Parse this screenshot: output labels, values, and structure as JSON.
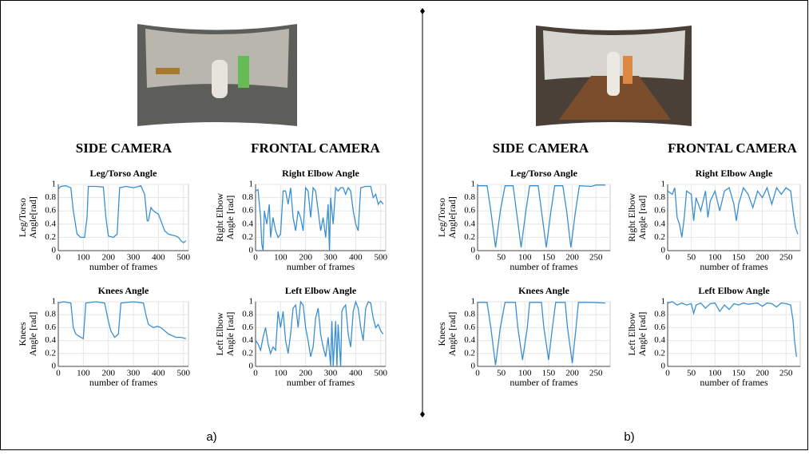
{
  "panels": [
    {
      "label": "a)",
      "headings": [
        "SIDE CAMERA",
        "FRONTAL CAMERA"
      ]
    },
    {
      "label": "b)",
      "headings": [
        "SIDE CAMERA",
        "FRONTAL CAMERA"
      ]
    }
  ],
  "chart_data": [
    {
      "type": "line",
      "title": "Leg/Torso Angle",
      "ylabel": [
        "Leg/Torso",
        "Angle[rad]"
      ],
      "xlabel": "number of frames",
      "color": "#3a8fd0",
      "grid": true,
      "xlim": [
        0,
        520
      ],
      "xticks": [
        0,
        100,
        200,
        300,
        400,
        500
      ],
      "ylim": [
        0,
        1
      ],
      "yticks": [
        0,
        0.2,
        0.4,
        0.6,
        0.8,
        1
      ],
      "x": [
        0,
        10,
        30,
        50,
        60,
        75,
        90,
        105,
        115,
        120,
        150,
        180,
        190,
        200,
        220,
        235,
        245,
        270,
        300,
        330,
        345,
        355,
        360,
        370,
        380,
        400,
        415,
        425,
        440,
        470,
        480,
        490,
        500,
        510
      ],
      "values": [
        0.93,
        0.97,
        0.98,
        0.95,
        0.6,
        0.25,
        0.2,
        0.2,
        0.5,
        0.97,
        0.97,
        0.96,
        0.5,
        0.22,
        0.2,
        0.25,
        0.95,
        0.97,
        0.95,
        0.98,
        0.85,
        0.45,
        0.45,
        0.65,
        0.6,
        0.55,
        0.4,
        0.3,
        0.25,
        0.22,
        0.2,
        0.15,
        0.12,
        0.15
      ]
    },
    {
      "type": "line",
      "title": "Right Elbow Angle",
      "ylabel": [
        "Right Elbow",
        "Angle [rad]"
      ],
      "xlabel": "number of frames",
      "color": "#3a8fd0",
      "grid": true,
      "xlim": [
        0,
        520
      ],
      "xticks": [
        0,
        100,
        200,
        300,
        400,
        500
      ],
      "ylim": [
        0,
        1
      ],
      "yticks": [
        0,
        0.2,
        0.4,
        0.6,
        0.8,
        1
      ],
      "x": [
        0,
        10,
        20,
        25,
        30,
        35,
        45,
        55,
        60,
        70,
        80,
        90,
        100,
        110,
        120,
        130,
        140,
        150,
        160,
        170,
        180,
        190,
        200,
        210,
        220,
        230,
        240,
        250,
        260,
        270,
        280,
        290,
        295,
        300,
        310,
        320,
        330,
        340,
        350,
        360,
        370,
        380,
        390,
        400,
        410,
        420,
        440,
        460,
        470,
        480,
        490,
        500,
        510
      ],
      "values": [
        0.9,
        0.92,
        0.5,
        0.1,
        0,
        0.6,
        0.4,
        0.7,
        0.2,
        0.5,
        0.3,
        0.2,
        0.25,
        0.9,
        0.9,
        0.7,
        0.95,
        0.5,
        0.3,
        0.6,
        0.5,
        0.3,
        0.95,
        0.9,
        0.5,
        0.95,
        0.9,
        0.6,
        0.3,
        0.5,
        0.2,
        0.7,
        0,
        0.8,
        0.4,
        0.95,
        0.9,
        0.95,
        0.95,
        0.85,
        0.95,
        0.9,
        0.6,
        0.4,
        0.3,
        0.95,
        0.97,
        0.97,
        0.8,
        0.85,
        0.7,
        0.75,
        0.7
      ]
    },
    {
      "type": "line",
      "title": "Knees Angle",
      "ylabel": [
        "Knees",
        "Angle [rad]"
      ],
      "xlabel": "number of frames",
      "color": "#3a8fd0",
      "grid": true,
      "xlim": [
        0,
        520
      ],
      "xticks": [
        0,
        100,
        200,
        300,
        400,
        500
      ],
      "ylim": [
        0,
        1
      ],
      "yticks": [
        0,
        0.2,
        0.4,
        0.6,
        0.8,
        1
      ],
      "x": [
        0,
        20,
        50,
        60,
        70,
        90,
        100,
        110,
        150,
        185,
        200,
        210,
        225,
        240,
        250,
        300,
        340,
        350,
        360,
        380,
        395,
        410,
        425,
        440,
        470,
        490,
        510
      ],
      "values": [
        0.98,
        1,
        0.98,
        0.6,
        0.5,
        0.45,
        0.43,
        0.98,
        1,
        0.98,
        0.7,
        0.55,
        0.45,
        0.5,
        0.98,
        1,
        0.98,
        0.8,
        0.65,
        0.6,
        0.62,
        0.6,
        0.55,
        0.5,
        0.45,
        0.45,
        0.43
      ]
    },
    {
      "type": "line",
      "title": "Left Elbow Angle",
      "ylabel": [
        "Left Elbow",
        "Angle [rad]"
      ],
      "xlabel": "number of frames",
      "color": "#3a8fd0",
      "grid": true,
      "xlim": [
        0,
        520
      ],
      "xticks": [
        0,
        100,
        200,
        300,
        400,
        500
      ],
      "ylim": [
        0,
        1
      ],
      "yticks": [
        0,
        0.2,
        0.4,
        0.6,
        0.8,
        1
      ],
      "x": [
        0,
        10,
        20,
        30,
        40,
        50,
        60,
        70,
        80,
        90,
        100,
        110,
        120,
        130,
        140,
        150,
        160,
        170,
        180,
        190,
        200,
        210,
        220,
        230,
        240,
        250,
        260,
        270,
        280,
        290,
        300,
        305,
        310,
        320,
        325,
        330,
        340,
        345,
        350,
        360,
        370,
        380,
        390,
        400,
        410,
        420,
        430,
        440,
        450,
        460,
        470,
        480,
        490,
        500,
        510
      ],
      "values": [
        0.4,
        0.35,
        0.25,
        0.45,
        0.6,
        0.35,
        0.2,
        0.3,
        0.25,
        0.85,
        0.6,
        0.85,
        0.4,
        0.2,
        0.5,
        0.9,
        0.95,
        0.6,
        1,
        0.95,
        0.6,
        0.4,
        0.15,
        0.3,
        0.75,
        0.9,
        0.5,
        0.3,
        0.15,
        0.45,
        0,
        0.7,
        0,
        0.7,
        0,
        0.65,
        0,
        0.85,
        0.9,
        0.95,
        0.5,
        0.3,
        0.85,
        1,
        0.9,
        0.6,
        0.4,
        0.9,
        1,
        0.98,
        0.75,
        0.6,
        0.65,
        0.55,
        0.5
      ]
    },
    {
      "type": "line",
      "title": "Leg/Torso Angle",
      "ylabel": [
        "Leg/Torso",
        "Angle[rad]"
      ],
      "xlabel": "number of frames",
      "color": "#3a8fd0",
      "grid": true,
      "xlim": [
        0,
        280
      ],
      "xticks": [
        0,
        50,
        100,
        150,
        200,
        250
      ],
      "ylim": [
        0,
        1
      ],
      "yticks": [
        0,
        0.2,
        0.4,
        0.6,
        0.8,
        1
      ],
      "x": [
        0,
        20,
        28,
        38,
        48,
        58,
        75,
        82,
        92,
        102,
        110,
        128,
        135,
        145,
        155,
        163,
        180,
        188,
        197,
        207,
        215,
        240,
        250,
        270
      ],
      "values": [
        0.98,
        0.98,
        0.6,
        0.05,
        0.6,
        0.98,
        0.98,
        0.6,
        0.05,
        0.6,
        0.98,
        0.98,
        0.6,
        0.05,
        0.6,
        0.98,
        0.98,
        0.6,
        0.05,
        0.6,
        0.98,
        0.97,
        0.99,
        0.99
      ]
    },
    {
      "type": "line",
      "title": "Right Elbow Angle",
      "ylabel": [
        "Right Elbow",
        "Angle [rad]"
      ],
      "xlabel": "number of frames",
      "color": "#3a8fd0",
      "grid": true,
      "xlim": [
        0,
        280
      ],
      "xticks": [
        0,
        50,
        100,
        150,
        200,
        250
      ],
      "ylim": [
        0,
        1
      ],
      "yticks": [
        0,
        0.2,
        0.4,
        0.6,
        0.8,
        1
      ],
      "x": [
        0,
        10,
        15,
        20,
        25,
        30,
        35,
        40,
        50,
        55,
        60,
        70,
        80,
        85,
        90,
        100,
        110,
        120,
        130,
        140,
        145,
        150,
        160,
        170,
        180,
        190,
        200,
        210,
        220,
        230,
        240,
        250,
        260,
        265,
        270,
        275
      ],
      "values": [
        0.9,
        0.85,
        0.95,
        0.5,
        0.4,
        0.2,
        0.5,
        0.9,
        0.85,
        0.45,
        0.8,
        0.6,
        0.9,
        0.5,
        0.75,
        0.9,
        0.6,
        0.9,
        0.95,
        0.7,
        0.45,
        0.7,
        0.95,
        0.85,
        0.65,
        0.9,
        0.8,
        0.95,
        0.7,
        0.95,
        0.85,
        0.95,
        0.9,
        0.6,
        0.35,
        0.25
      ]
    },
    {
      "type": "line",
      "title": "Knees Angle",
      "ylabel": [
        "Knees",
        "Angle [rad]"
      ],
      "xlabel": "number of frames",
      "color": "#3a8fd0",
      "grid": true,
      "xlim": [
        0,
        280
      ],
      "xticks": [
        0,
        50,
        100,
        150,
        200,
        250
      ],
      "ylim": [
        0,
        1
      ],
      "yticks": [
        0,
        0.2,
        0.4,
        0.6,
        0.8,
        1
      ],
      "x": [
        0,
        20,
        28,
        38,
        48,
        58,
        80,
        85,
        95,
        105,
        110,
        135,
        140,
        150,
        158,
        165,
        185,
        190,
        200,
        208,
        213,
        240,
        270
      ],
      "values": [
        0.99,
        0.99,
        0.6,
        0.02,
        0.6,
        0.99,
        0.99,
        0.6,
        0.1,
        0.6,
        0.99,
        0.99,
        0.6,
        0.1,
        0.6,
        0.99,
        0.99,
        0.6,
        0.05,
        0.6,
        0.99,
        0.99,
        0.98
      ]
    },
    {
      "type": "line",
      "title": "Left Elbow Angle",
      "ylabel": [
        "Left Elbow",
        "Angle [rad]"
      ],
      "xlabel": "number of frames",
      "color": "#3a8fd0",
      "grid": true,
      "xlim": [
        0,
        280
      ],
      "xticks": [
        0,
        50,
        100,
        150,
        200,
        250
      ],
      "ylim": [
        0,
        1
      ],
      "yticks": [
        0,
        0.2,
        0.4,
        0.6,
        0.8,
        1
      ],
      "x": [
        0,
        10,
        20,
        30,
        40,
        50,
        55,
        60,
        70,
        80,
        90,
        100,
        110,
        120,
        130,
        140,
        150,
        160,
        170,
        180,
        190,
        200,
        210,
        220,
        230,
        240,
        250,
        260,
        265,
        268,
        272
      ],
      "values": [
        0.98,
        1,
        0.95,
        0.98,
        0.95,
        0.97,
        0.82,
        0.95,
        0.98,
        0.9,
        0.97,
        0.98,
        0.85,
        0.95,
        0.88,
        0.97,
        0.95,
        0.98,
        0.96,
        0.97,
        0.98,
        0.93,
        0.98,
        0.97,
        0.92,
        0.98,
        0.97,
        0.95,
        0.7,
        0.4,
        0.15
      ]
    }
  ]
}
